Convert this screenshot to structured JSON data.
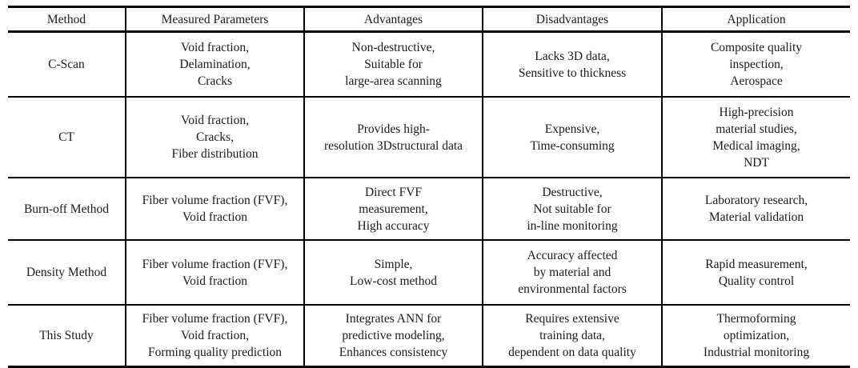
{
  "table": {
    "columns": {
      "method": "Method",
      "measured_parameters": "Measured Parameters",
      "advantages": "Advantages",
      "disadvantages": "Disadvantages",
      "application": "Application"
    },
    "rows": [
      {
        "method": "C-Scan",
        "measured_parameters": "Void fraction,\nDelamination,\nCracks",
        "advantages": "Non-destructive,\nSuitable for\nlarge-area scanning",
        "disadvantages": "Lacks 3D data,\nSensitive to thickness",
        "application": "Composite quality\ninspection,\nAerospace"
      },
      {
        "method": "CT",
        "measured_parameters": "Void fraction,\nCracks,\nFiber distribution",
        "advantages": "Provides high-\nresolution 3Dstructural data",
        "disadvantages": "Expensive,\nTime-consuming",
        "application": "High-precision\nmaterial studies,\nMedical imaging,\nNDT"
      },
      {
        "method": "Burn-off Method",
        "measured_parameters": "Fiber volume fraction (FVF),\nVoid fraction",
        "advantages": "Direct FVF\nmeasurement,\nHigh accuracy",
        "disadvantages": "Destructive,\nNot suitable for\nin-line monitoring",
        "application": "Laboratory research,\nMaterial validation"
      },
      {
        "method": "Density Method",
        "measured_parameters": "Fiber volume fraction (FVF),\nVoid fraction",
        "advantages": "Simple,\nLow-cost method",
        "disadvantages": "Accuracy affected\nby material and\nenvironmental factors",
        "application": "Rapid measurement,\nQuality control"
      },
      {
        "method": "This Study",
        "measured_parameters": "Fiber volume fraction (FVF),\nVoid fraction,\nForming quality prediction",
        "advantages": "Integrates ANN for\npredictive modeling,\nEnhances consistency",
        "disadvantages": "Requires extensive\ntraining data,\ndependent on data quality",
        "application": "Thermoforming\noptimization,\nIndustrial monitoring"
      }
    ]
  }
}
